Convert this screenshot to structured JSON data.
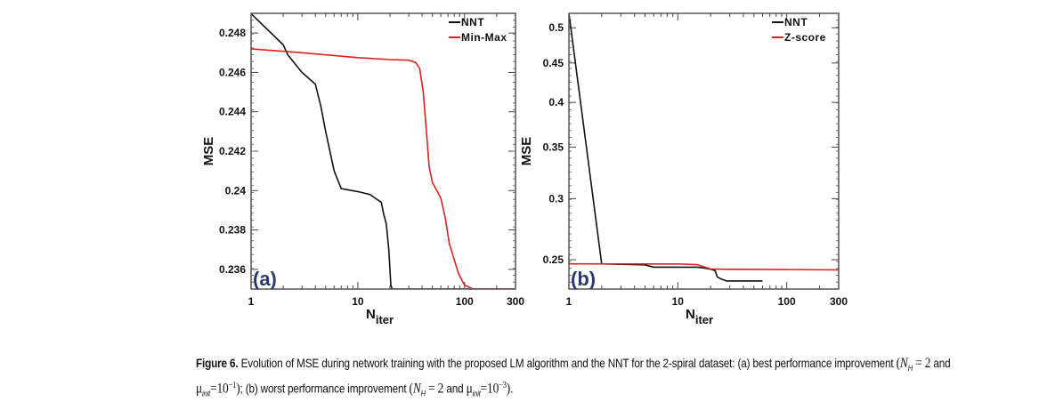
{
  "chart_data": [
    {
      "type": "line",
      "panel_label": "(a)",
      "xlabel": "N",
      "xlabel_sub": "iter",
      "ylabel": "MSE",
      "xscale": "log",
      "xlim": [
        1,
        300
      ],
      "ylim": [
        0.235,
        0.249
      ],
      "x_ticks": [
        "1",
        "10",
        "100",
        "300"
      ],
      "y_ticks": [
        "0.236",
        "0.238",
        "0.24",
        "0.242",
        "0.244",
        "0.246",
        "0.248"
      ],
      "legend": "top-right",
      "series": [
        {
          "name": "NNT",
          "color": "#111111",
          "x": [
            1,
            2,
            2.2,
            3,
            4,
            4.5,
            5,
            6,
            7,
            10,
            13,
            16.6,
            17.5,
            18.5,
            19.5,
            20.4,
            21,
            300
          ],
          "y": [
            0.24898,
            0.2474,
            0.2469,
            0.246,
            0.2454,
            0.2443,
            0.243,
            0.241,
            0.2401,
            0.23995,
            0.2398,
            0.2394,
            0.2388,
            0.2383,
            0.237,
            0.2352,
            0.235,
            0.235
          ]
        },
        {
          "name": "Min-Max",
          "color": "#e02020",
          "x": [
            1,
            3,
            10,
            20,
            30,
            35,
            38,
            41,
            44,
            46.6,
            50,
            55,
            60,
            66,
            72,
            80,
            87.6,
            100,
            120,
            300
          ],
          "y": [
            0.2472,
            0.247,
            0.24675,
            0.24665,
            0.24662,
            0.2465,
            0.2462,
            0.245,
            0.243,
            0.2412,
            0.2404,
            0.24,
            0.2396,
            0.2386,
            0.2373,
            0.2365,
            0.2358,
            0.2352,
            0.235,
            0.235
          ]
        }
      ]
    },
    {
      "type": "line",
      "panel_label": "(b)",
      "xlabel": "N",
      "xlabel_sub": "iter",
      "ylabel": "MSE",
      "xscale": "log",
      "xlim": [
        1,
        300
      ],
      "yscale": "log",
      "ylim": [
        0.229,
        0.522
      ],
      "x_ticks": [
        "1",
        "10",
        "100",
        "300"
      ],
      "y_ticks": [
        "0.25",
        "0.3",
        "0.35",
        "0.4",
        "0.45",
        "0.5"
      ],
      "legend": "top-right",
      "series": [
        {
          "name": "NNT",
          "color": "#111111",
          "x": [
            1,
            2,
            5,
            6,
            15,
            17,
            20,
            22,
            23,
            25,
            28,
            60
          ],
          "y": [
            0.522,
            0.2469,
            0.2462,
            0.2445,
            0.2445,
            0.244,
            0.243,
            0.242,
            0.2375,
            0.236,
            0.2346,
            0.2346
          ]
        },
        {
          "name": "Z-score",
          "color": "#e02020",
          "x": [
            1,
            10,
            15,
            17,
            20,
            30,
            100,
            300
          ],
          "y": [
            0.2469,
            0.2468,
            0.2463,
            0.245,
            0.2432,
            0.2429,
            0.2427,
            0.2425
          ]
        }
      ]
    }
  ],
  "caption": {
    "figure_label": "Figure 6.",
    "text_1": "Evolution of MSE during network training with the proposed LM algorithm and the NNT for the 2-spiral dataset: (a) best performance improvement",
    "a_params": {
      "NH": "N",
      "NH_sub": "H",
      "eq": "= 2",
      "and": "and",
      "mu": "μ",
      "mu_sub": "init",
      "mu_eq": "=10",
      "mu_exp": "−1"
    },
    "text_2": "; (b) worst performance improvement",
    "b_params": {
      "NH": "N",
      "NH_sub": "H",
      "eq": "= 2",
      "and": "and",
      "mu": "μ",
      "mu_sub": "init",
      "mu_eq": "=10",
      "mu_exp": "−3"
    },
    "end": "."
  }
}
